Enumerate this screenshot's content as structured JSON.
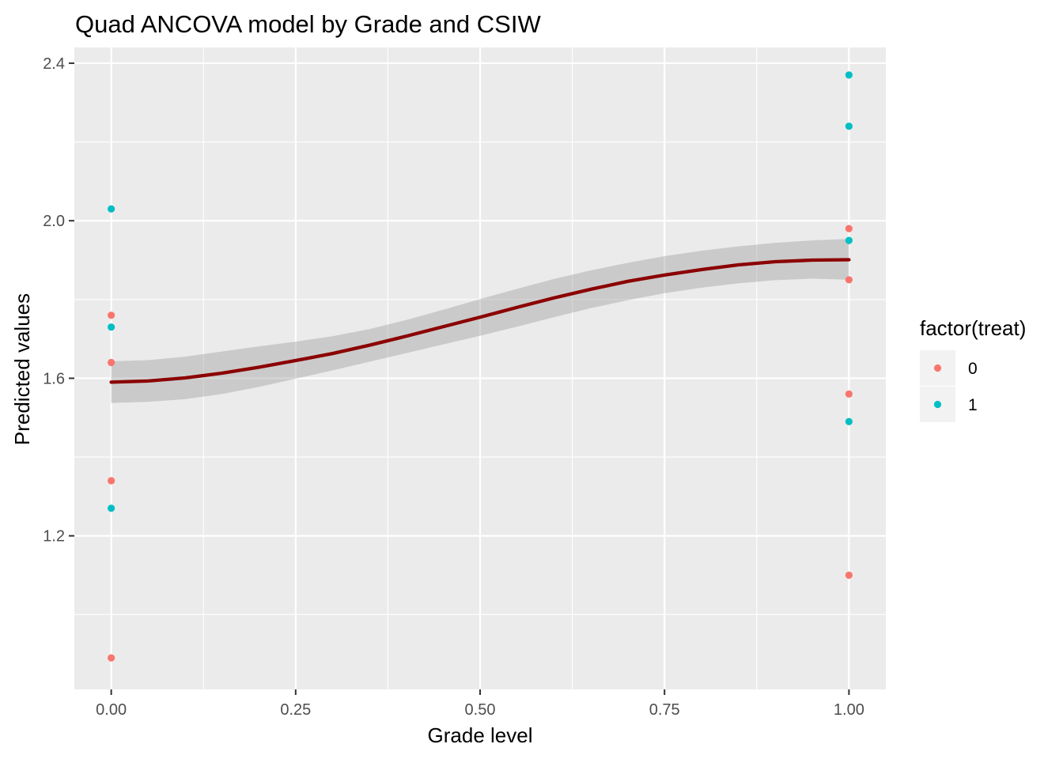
{
  "chart_data": {
    "type": "scatter",
    "title": "Quad ANCOVA model by Grade and CSIW",
    "xlabel": "Grade level",
    "ylabel": "Predicted values",
    "xlim": [
      -0.05,
      1.05
    ],
    "ylim": [
      0.81,
      2.44
    ],
    "x_ticks": [
      0.0,
      0.25,
      0.5,
      0.75,
      1.0
    ],
    "x_tick_labels": [
      "0.00",
      "0.25",
      "0.50",
      "0.75",
      "1.00"
    ],
    "y_ticks": [
      1.2,
      1.6,
      2.0,
      2.4
    ],
    "y_tick_labels": [
      "1.2",
      "1.6",
      "2.0",
      "2.4"
    ],
    "grid": true,
    "legend": {
      "title": "factor(treat)",
      "position": "right",
      "entries": [
        {
          "label": "0",
          "color": "#F8766D"
        },
        {
          "label": "1",
          "color": "#00BFC4"
        }
      ]
    },
    "series": [
      {
        "name": "0",
        "color": "#F8766D",
        "points": [
          {
            "x": 0,
            "y": 1.76
          },
          {
            "x": 0,
            "y": 1.64
          },
          {
            "x": 0,
            "y": 1.34
          },
          {
            "x": 0,
            "y": 0.89
          },
          {
            "x": 1,
            "y": 1.98
          },
          {
            "x": 1,
            "y": 1.85
          },
          {
            "x": 1,
            "y": 1.56
          },
          {
            "x": 1,
            "y": 1.1
          }
        ]
      },
      {
        "name": "1",
        "color": "#00BFC4",
        "points": [
          {
            "x": 0,
            "y": 2.03
          },
          {
            "x": 0,
            "y": 1.73
          },
          {
            "x": 0,
            "y": 1.27
          },
          {
            "x": 1,
            "y": 2.37
          },
          {
            "x": 1,
            "y": 2.24
          },
          {
            "x": 1,
            "y": 1.95
          },
          {
            "x": 1,
            "y": 1.49
          }
        ]
      }
    ],
    "fit_line": {
      "color": "#8B0000",
      "band_color": "#999999",
      "x": [
        0.0,
        0.05,
        0.1,
        0.15,
        0.2,
        0.25,
        0.3,
        0.35,
        0.4,
        0.45,
        0.5,
        0.55,
        0.6,
        0.65,
        0.7,
        0.75,
        0.8,
        0.85,
        0.9,
        0.95,
        1.0
      ],
      "y": [
        1.59,
        1.593,
        1.601,
        1.613,
        1.628,
        1.645,
        1.663,
        1.684,
        1.707,
        1.731,
        1.755,
        1.78,
        1.804,
        1.826,
        1.846,
        1.862,
        1.876,
        1.888,
        1.896,
        1.9,
        1.901
      ],
      "lower": [
        1.537,
        1.54,
        1.547,
        1.56,
        1.578,
        1.599,
        1.62,
        1.642,
        1.664,
        1.686,
        1.708,
        1.731,
        1.755,
        1.778,
        1.798,
        1.816,
        1.83,
        1.841,
        1.849,
        1.853,
        1.85
      ],
      "upper": [
        1.643,
        1.646,
        1.655,
        1.668,
        1.681,
        1.693,
        1.707,
        1.725,
        1.748,
        1.774,
        1.801,
        1.827,
        1.852,
        1.874,
        1.893,
        1.91,
        1.924,
        1.935,
        1.944,
        1.95,
        1.954
      ]
    }
  }
}
